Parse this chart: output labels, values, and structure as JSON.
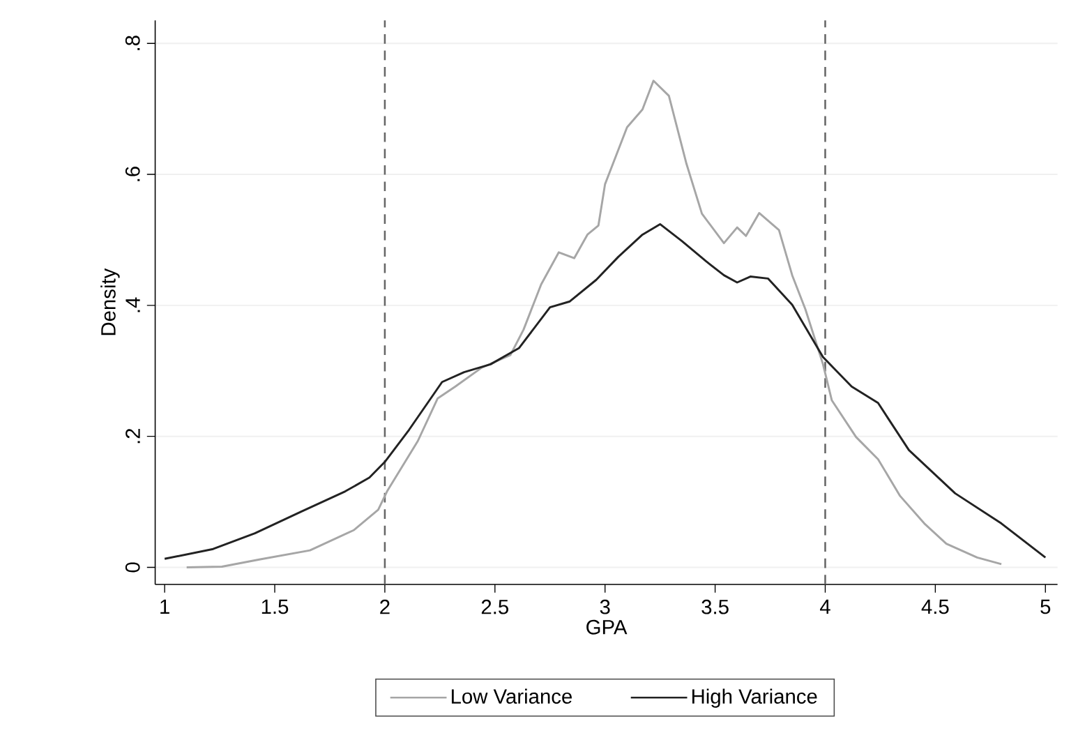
{
  "chart_data": {
    "type": "line",
    "xlabel": "GPA",
    "ylabel": "Density",
    "xlim": [
      0.957,
      5.055
    ],
    "ylim": [
      -0.026,
      0.835
    ],
    "xticks": [
      1,
      1.5,
      2,
      2.5,
      3,
      3.5,
      4,
      4.5,
      5
    ],
    "yticks": [
      {
        "value": 0,
        "label": "0"
      },
      {
        "value": 0.2,
        "label": ".2"
      },
      {
        "value": 0.4,
        "label": ".4"
      },
      {
        "value": 0.6,
        "label": ".6"
      },
      {
        "value": 0.8,
        "label": ".8"
      }
    ],
    "grid": "y",
    "legend": "bottom",
    "line_style": "solid",
    "ref_lines": [
      {
        "axis": "x",
        "value": 2,
        "color": "#666666",
        "line_style": "dashed"
      },
      {
        "axis": "x",
        "value": 4,
        "color": "#666666",
        "line_style": "dashed"
      }
    ],
    "series": [
      {
        "name": "Low Variance",
        "color": "#a6a6a6",
        "x": [
          1.1,
          1.26,
          1.43,
          1.66,
          1.86,
          1.97,
          2.01,
          2.15,
          2.24,
          2.32,
          2.44,
          2.57,
          2.63,
          2.71,
          2.79,
          2.86,
          2.92,
          2.97,
          3.0,
          3.1,
          3.17,
          3.22,
          3.29,
          3.37,
          3.44,
          3.54,
          3.6,
          3.64,
          3.7,
          3.79,
          3.85,
          3.91,
          3.99,
          4.03,
          4.14,
          4.24,
          4.34,
          4.45,
          4.55,
          4.69,
          4.8
        ],
        "values": [
          0.0,
          0.001,
          0.012,
          0.026,
          0.057,
          0.088,
          0.116,
          0.193,
          0.258,
          0.276,
          0.305,
          0.324,
          0.363,
          0.432,
          0.481,
          0.472,
          0.508,
          0.522,
          0.585,
          0.672,
          0.699,
          0.743,
          0.72,
          0.616,
          0.54,
          0.495,
          0.519,
          0.506,
          0.541,
          0.515,
          0.446,
          0.394,
          0.31,
          0.255,
          0.199,
          0.165,
          0.109,
          0.067,
          0.036,
          0.015,
          0.005
        ]
      },
      {
        "name": "High Variance",
        "color": "#222222",
        "x": [
          1.0,
          1.22,
          1.41,
          1.62,
          1.82,
          1.93,
          2.0,
          2.11,
          2.26,
          2.36,
          2.48,
          2.61,
          2.75,
          2.84,
          2.96,
          3.06,
          3.17,
          3.25,
          3.35,
          3.46,
          3.54,
          3.6,
          3.66,
          3.74,
          3.85,
          3.99,
          4.12,
          4.24,
          4.38,
          4.59,
          4.8,
          5.0
        ],
        "values": [
          0.013,
          0.028,
          0.052,
          0.085,
          0.116,
          0.137,
          0.161,
          0.21,
          0.283,
          0.298,
          0.31,
          0.335,
          0.397,
          0.406,
          0.439,
          0.474,
          0.508,
          0.524,
          0.498,
          0.467,
          0.446,
          0.435,
          0.444,
          0.441,
          0.401,
          0.321,
          0.276,
          0.251,
          0.179,
          0.113,
          0.067,
          0.015
        ]
      }
    ]
  }
}
